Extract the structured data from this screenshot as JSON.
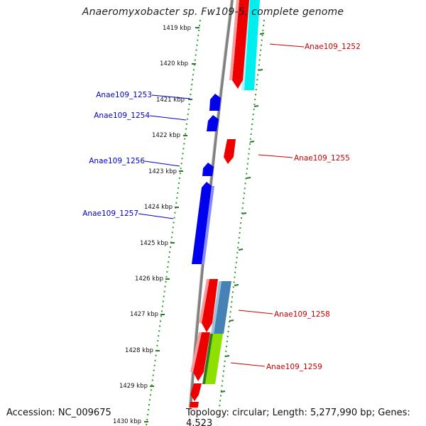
{
  "title": "Anaeromyxobacter sp. Fw109-5, complete genome",
  "footer": {
    "accession": "Accession: NC_009675",
    "stats": "Topology: circular; Length: 5,277,990 bp; Genes: 4,523"
  },
  "ticks": [
    "1419 kbp",
    "1420 kbp",
    "1421 kbp",
    "1422 kbp",
    "1423 kbp",
    "1424 kbp",
    "1425 kbp",
    "1426 kbp",
    "1427 kbp",
    "1428 kbp",
    "1429 kbp",
    "1430 kbp"
  ],
  "genes": {
    "forward": [
      "Anae109_1252",
      "Anae109_1255",
      "Anae109_1258",
      "Anae109_1259"
    ],
    "reverse": [
      "Anae109_1253",
      "Anae109_1254",
      "Anae109_1256",
      "Anae109_1257"
    ]
  },
  "colors": {
    "forward_label": "#cc0000",
    "reverse_label": "#0000cc",
    "backbone": "#808080",
    "tick_mark": "#2a7a2a",
    "red_feature": "#ee0000",
    "blue_feature": "#0000ee",
    "cyan_feature": "#00eeee",
    "steelblue_feature": "#4682b4",
    "green_feature": "#7fd000"
  }
}
